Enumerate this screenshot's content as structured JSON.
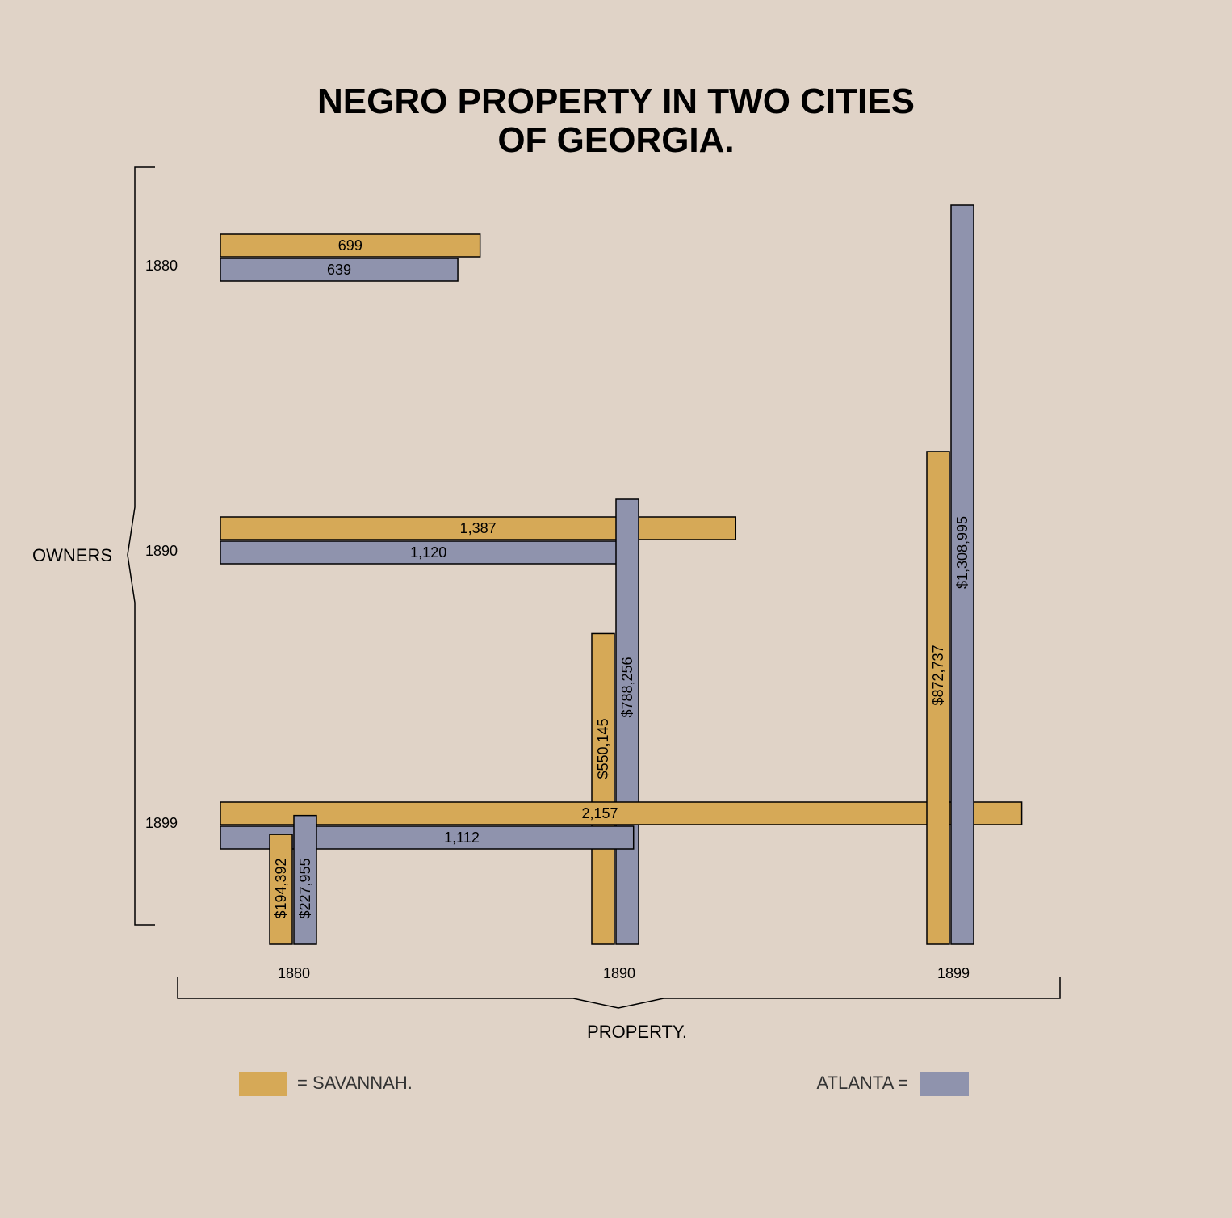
{
  "chart_data": {
    "type": "bar",
    "title_lines": [
      "NEGRO PROPERTY IN TWO CITIES",
      "OF GEORGIA."
    ],
    "years": [
      "1880",
      "1890",
      "1899"
    ],
    "owners_label": "OWNERS",
    "property_label": "PROPERTY.",
    "owners": {
      "series": [
        {
          "name": "SAVANNAH",
          "values": [
            699,
            1387,
            2157
          ],
          "labels": [
            "699",
            "1,387",
            "2,157"
          ]
        },
        {
          "name": "ATLANTA",
          "values": [
            639,
            1120,
            1112
          ],
          "labels": [
            "639",
            "1,120",
            "1,112"
          ]
        }
      ],
      "xlim": [
        0,
        2486
      ]
    },
    "property": {
      "series": [
        {
          "name": "SAVANNAH",
          "values": [
            194392,
            550145,
            872737
          ],
          "labels": [
            "$194,392",
            "$550,145",
            "$872,737"
          ]
        },
        {
          "name": "ATLANTA",
          "values": [
            227955,
            788256,
            1308995
          ],
          "labels": [
            "$227,955",
            "$788,256",
            "$1,308,995"
          ]
        }
      ],
      "ylim": [
        0,
        1308995
      ]
    },
    "legend": {
      "savannah": "= SAVANNAH.",
      "atlanta": "ATLANTA ="
    },
    "colors": {
      "savannah": "#d6a957",
      "atlanta": "#8f93ad",
      "background": "#e0d3c7",
      "stroke": "#000000"
    }
  }
}
